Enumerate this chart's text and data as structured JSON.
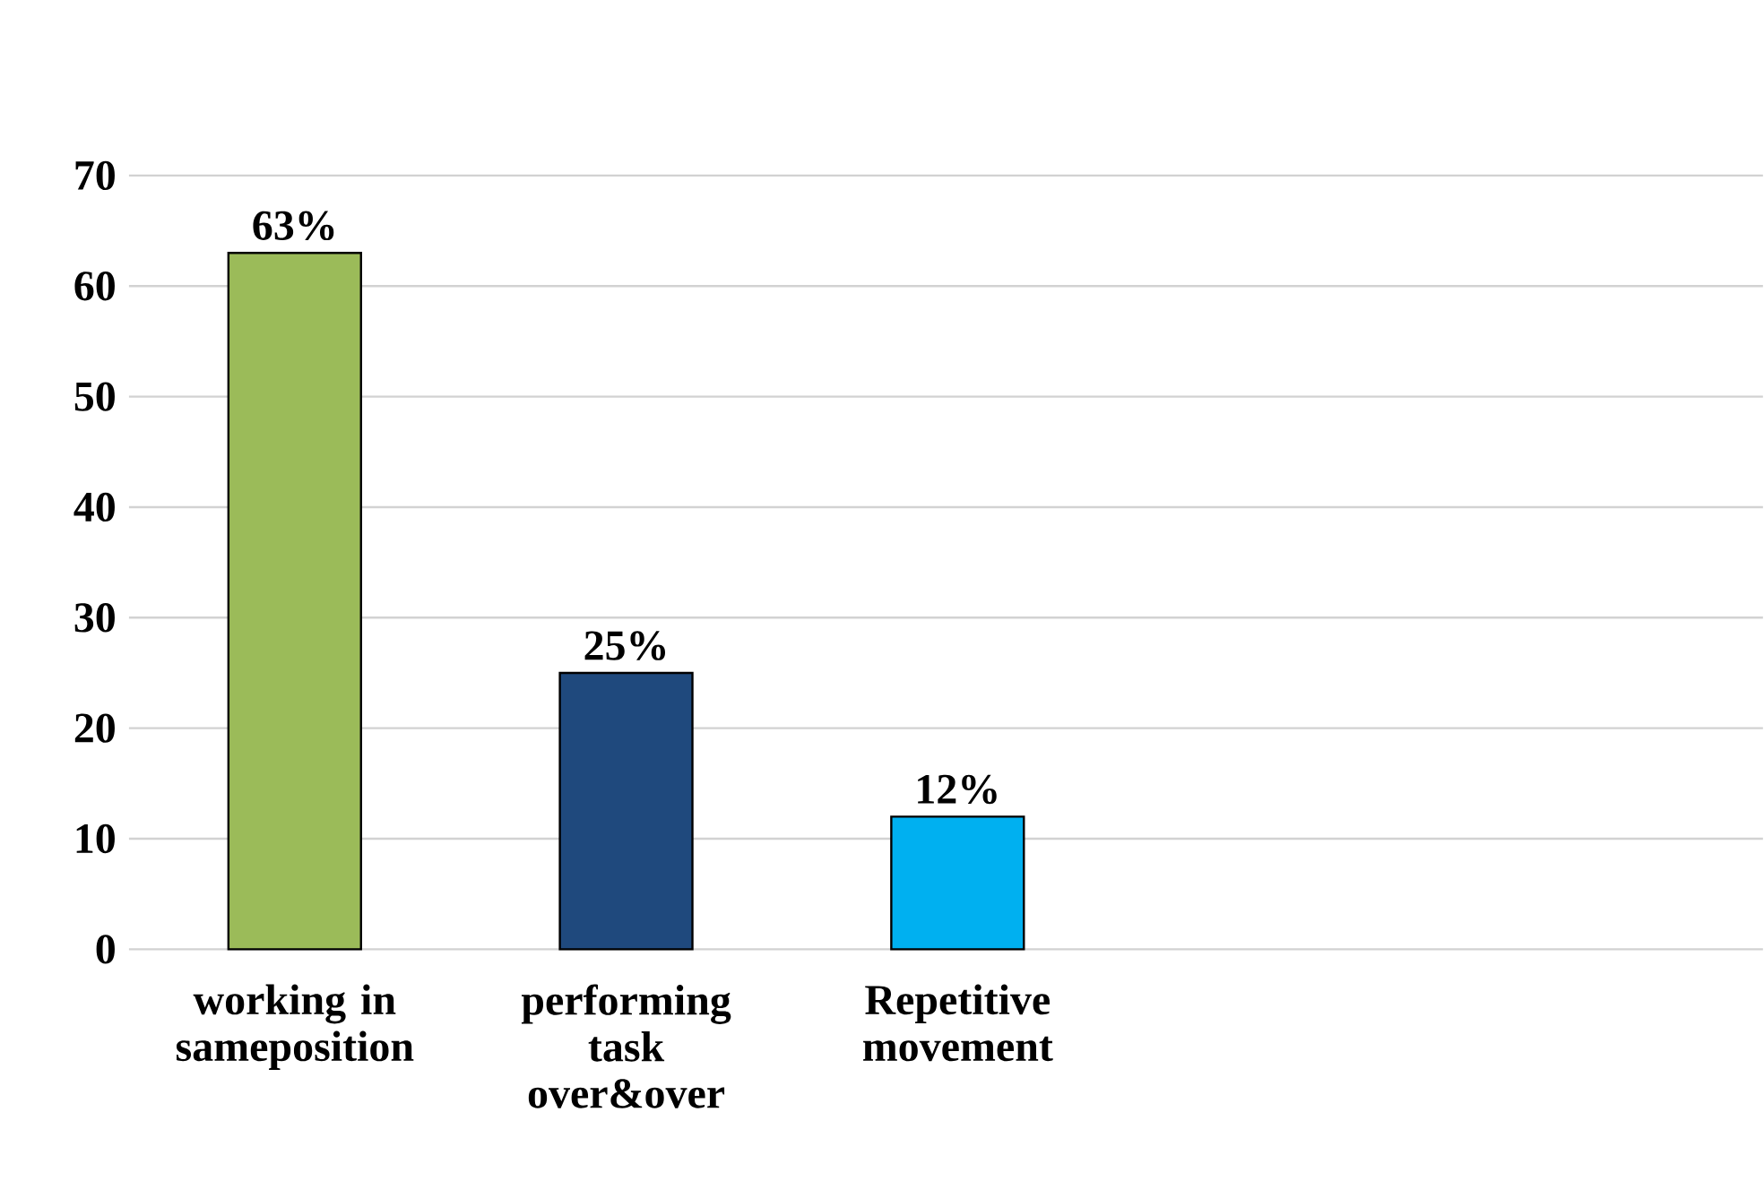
{
  "chart_data": {
    "type": "bar",
    "categories": [
      "working in sameposition",
      "performing task over&over",
      "Repetitive movement"
    ],
    "values": [
      63,
      25,
      12
    ],
    "colors": [
      "#9bbb59",
      "#1f497d",
      "#00b0f0"
    ],
    "value_labels": [
      "63%",
      "25%",
      "12%"
    ],
    "ylim": [
      0,
      70
    ],
    "yticks": [
      0,
      10,
      20,
      30,
      40,
      50,
      60,
      70
    ],
    "grid": "y"
  }
}
